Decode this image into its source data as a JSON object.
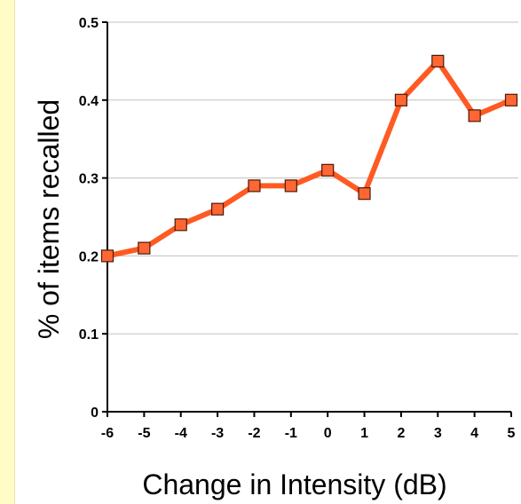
{
  "chart_data": {
    "type": "line",
    "title": "",
    "xlabel": "Change in Intensity (dB)",
    "ylabel": "% of items recalled",
    "x": [
      -6,
      -5,
      -4,
      -3,
      -2,
      -1,
      0,
      1,
      2,
      3,
      4,
      5
    ],
    "x_tick_labels": [
      "-6",
      "-5",
      "-4",
      "-3",
      "-2",
      "-1",
      "0",
      "1",
      "2",
      "3",
      "4",
      "5"
    ],
    "y_tick_labels": [
      "0",
      "0.1",
      "0.2",
      "0.3",
      "0.4",
      "0.5"
    ],
    "y_ticks": [
      0,
      0.1,
      0.2,
      0.3,
      0.4,
      0.5
    ],
    "series": [
      {
        "values": [
          0.2,
          0.21,
          0.24,
          0.26,
          0.29,
          0.29,
          0.31,
          0.28,
          0.4,
          0.45,
          0.38,
          0.4
        ]
      }
    ],
    "xlim": [
      -6,
      5
    ],
    "ylim": [
      0,
      0.5
    ],
    "grid": "horizontal",
    "legend": "none",
    "colors": {
      "line": "#ff5a22",
      "marker_fill": "#ff6633",
      "marker_stroke": "#4a1a08",
      "grid": "#c0c0c0",
      "axis": "#000000",
      "side_strip": "#fffcc8"
    }
  }
}
